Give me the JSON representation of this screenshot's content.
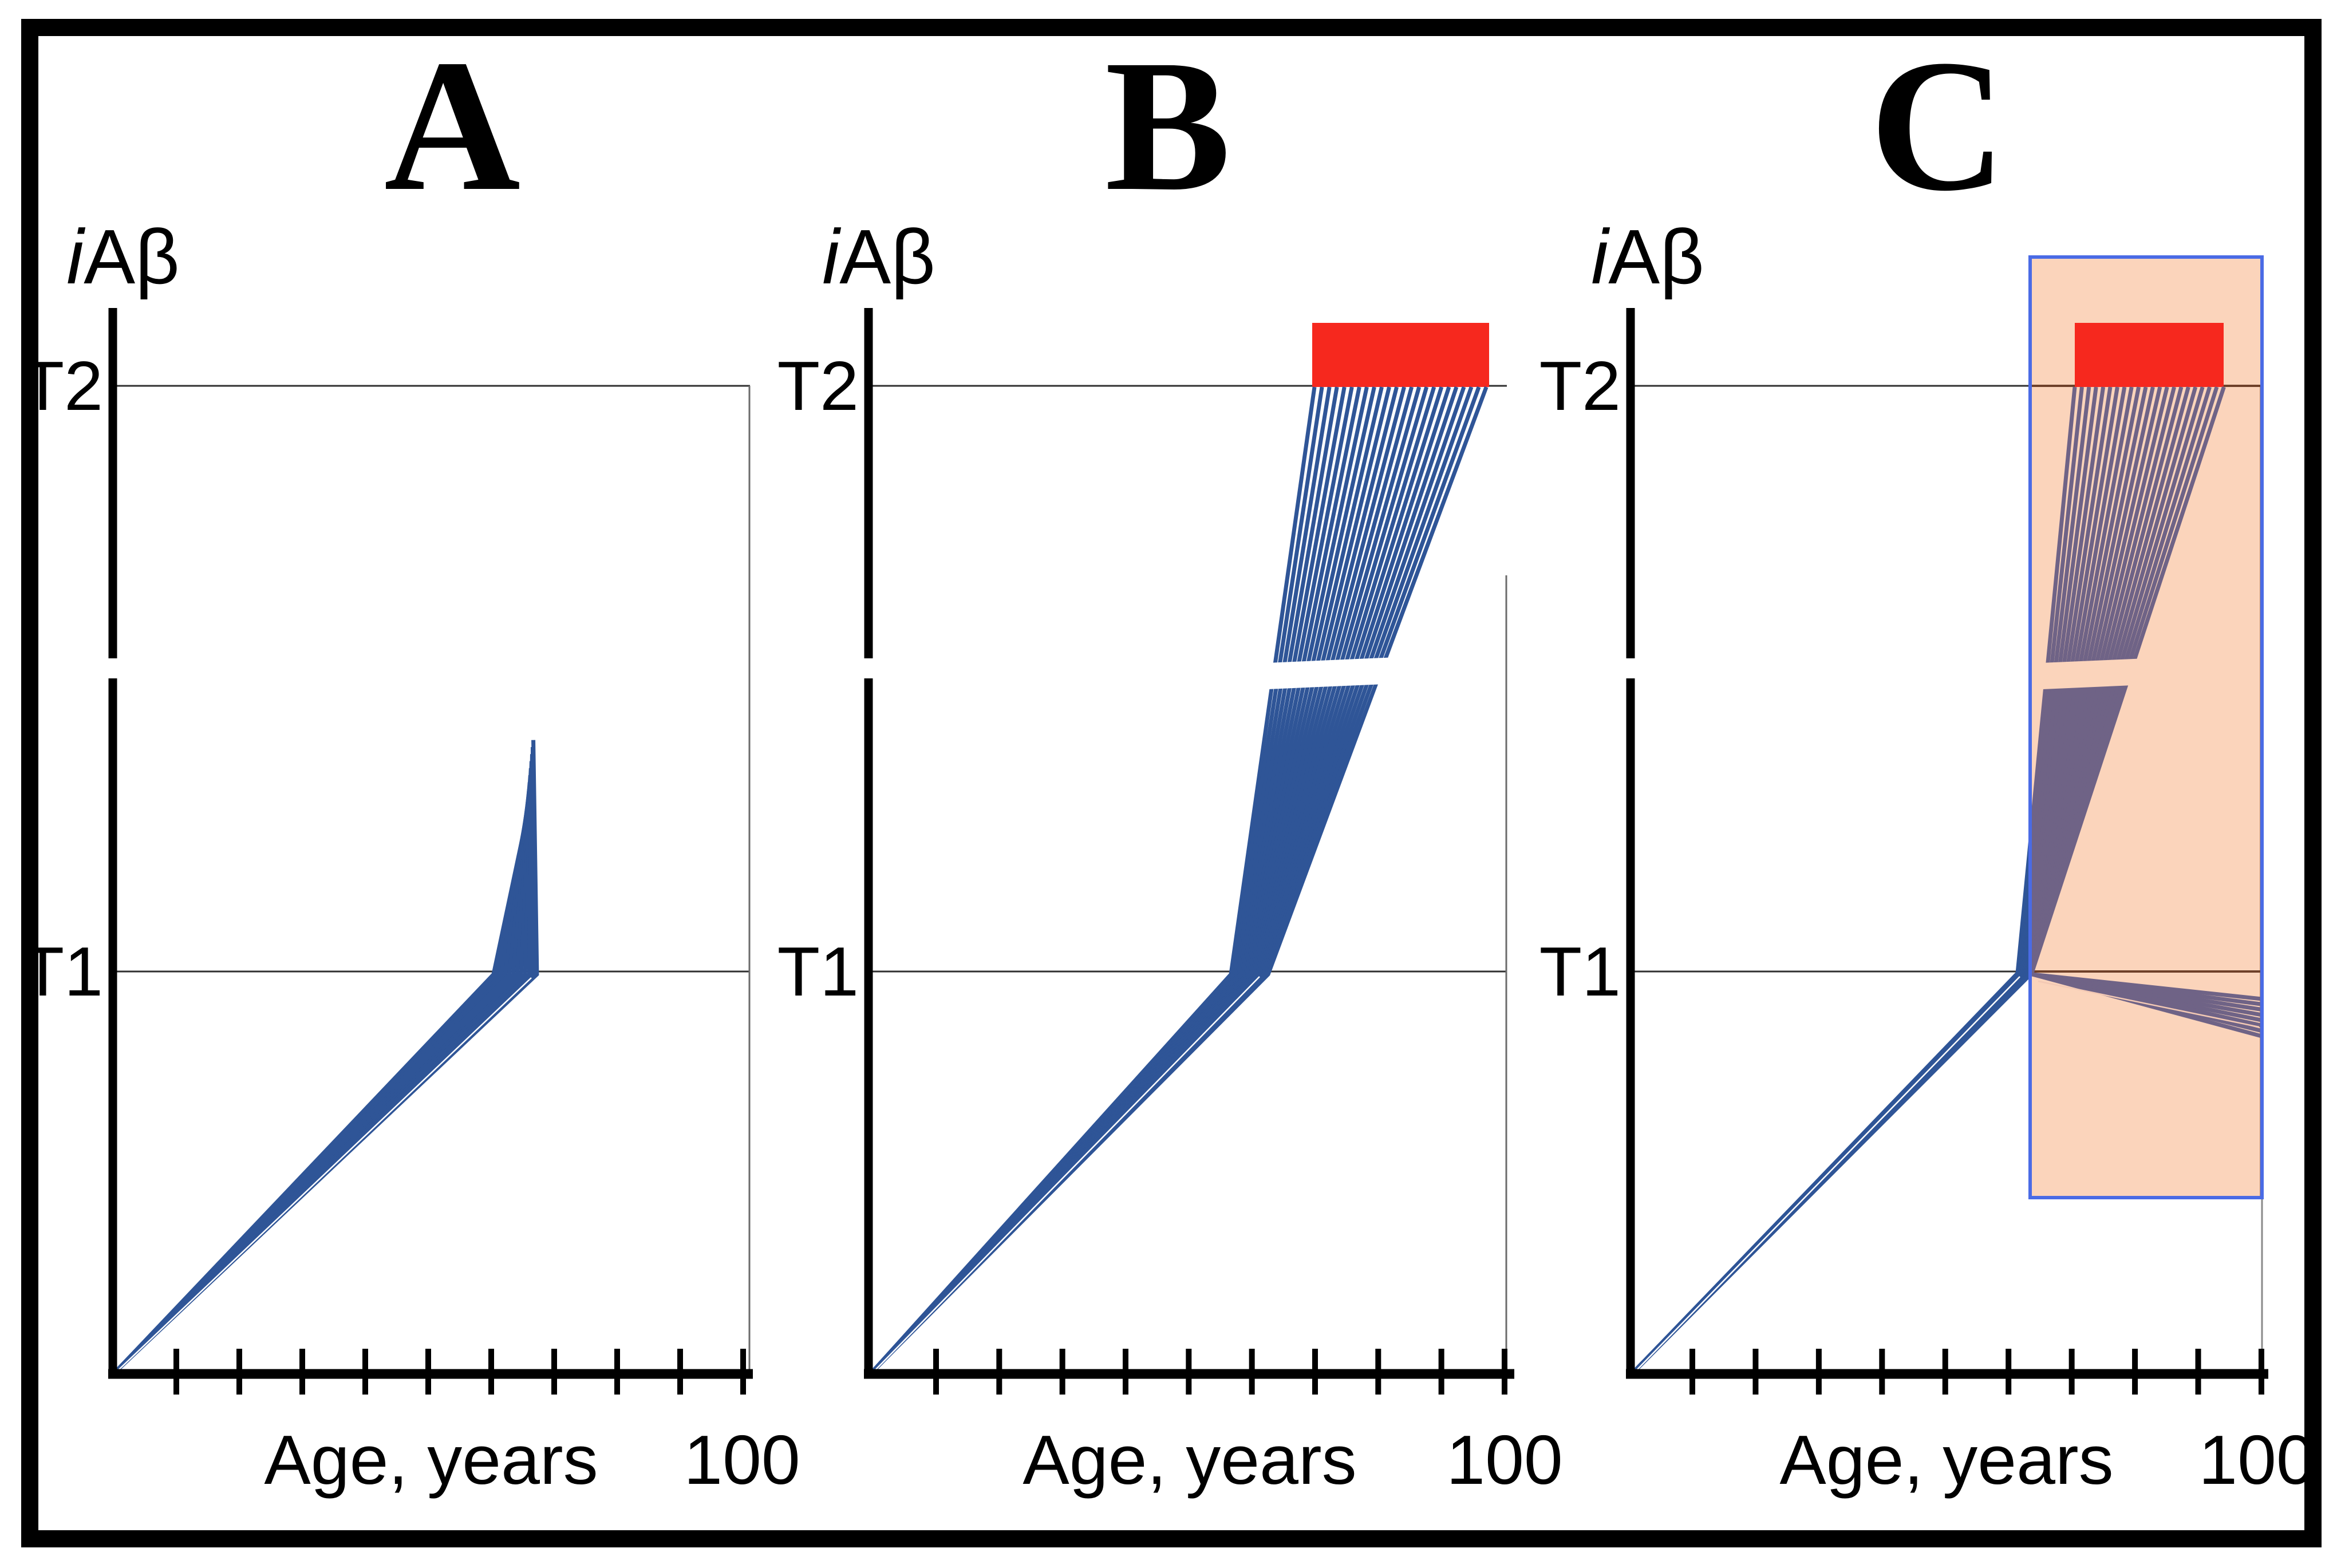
{
  "figure": {
    "description": "Three-panel scientific figure: intraneuronal amyloid-beta (iAb) level versus age with two thresholds T1 and T2, showing fans of individual trajectories",
    "panels": [
      {
        "title": "A"
      },
      {
        "title": "B"
      },
      {
        "title": "C"
      }
    ],
    "labels": {
      "y_prefix": "i",
      "y_main": "Aβ",
      "t2": "T2",
      "t1": "T1",
      "x_label": "Age, years",
      "x_max_tick": "100"
    },
    "colors": {
      "trajectory_blue": "#2F5597",
      "trajectory_under_overlay": "#6F6386",
      "highlight_white": "#FFFFFF",
      "highlight_peach": "#F3C9B4",
      "red_bar": "#F6281E",
      "overlay_fill": "#FBD4BB",
      "overlay_border": "#4A6BE5",
      "threshold_line": "#303030",
      "threshold_line_under_overlay": "#6E4029",
      "panel_right_border": "#6B6B6B",
      "axis_black": "#000000"
    }
  },
  "chart_data": [
    {
      "type": "line",
      "panel": "A",
      "title": "A",
      "xlabel": "Age, years",
      "ylabel": "iAβ",
      "x_range": [
        0,
        100
      ],
      "x_tick_interval": 10,
      "x_last_tick_label": "100",
      "y_thresholds": [
        "T1",
        "T2"
      ],
      "y_axis_break": true,
      "series_description": "Fan of ~12 linear iAb trajectories rising from age 0, crossing threshold T1 at ages ~60-67, then rising steeply in a narrow spike that peaks between T1 and T2 at age ~66; trajectories never reach T2",
      "t1_crossing_age_range": [
        60,
        67
      ],
      "spike_peak_age": 66,
      "reaches_t2": false
    },
    {
      "type": "line",
      "panel": "B",
      "title": "B",
      "xlabel": "Age, years",
      "ylabel": "iAβ",
      "x_range": [
        0,
        100
      ],
      "x_tick_interval": 10,
      "x_last_tick_label": "100",
      "y_thresholds": [
        "T1",
        "T2"
      ],
      "y_axis_break": true,
      "series_description": "Fan of ~24 linear iAb trajectories rising from age 0, crossing T1 at ages ~57-63, then rising steeply and reaching threshold T2 at ages ~72-98; red bar above T2 marks the age window of reaching T2",
      "t1_crossing_age_range": [
        57,
        63
      ],
      "t2_arrival_age_range": [
        72,
        98
      ],
      "red_bar_age_range": [
        70,
        98
      ],
      "reaches_t2": true
    },
    {
      "type": "line",
      "panel": "C",
      "title": "C",
      "xlabel": "Age, years",
      "ylabel": "iAβ",
      "x_range": [
        0,
        100
      ],
      "x_tick_interval": 10,
      "x_last_tick_label": "100",
      "y_thresholds": [
        "T1",
        "T2"
      ],
      "y_axis_break": true,
      "series_description": "Same fan as panel B but delayed: trajectories cross T1 at ages ~61-64; rising branch reaches T2 at ages ~71-94 (red bar above T2); an additional declining bundle of trajectories leaves T1 at age ~64 and falls below T1 toward age 100; translucent orange window (ages ~64-100, iAb from below T1 to above T2) highlights the intervention/observation window",
      "t1_crossing_age_range": [
        61,
        64
      ],
      "t2_arrival_age_range": [
        71,
        94
      ],
      "red_bar_age_range": [
        71,
        94
      ],
      "decline_branch": {
        "start_age": 64,
        "end_age": 100,
        "direction": "below T1"
      },
      "orange_window": {
        "age_range": [
          64,
          100
        ],
        "covers": "from below T1 to above T2"
      },
      "reaches_t2": true
    }
  ]
}
